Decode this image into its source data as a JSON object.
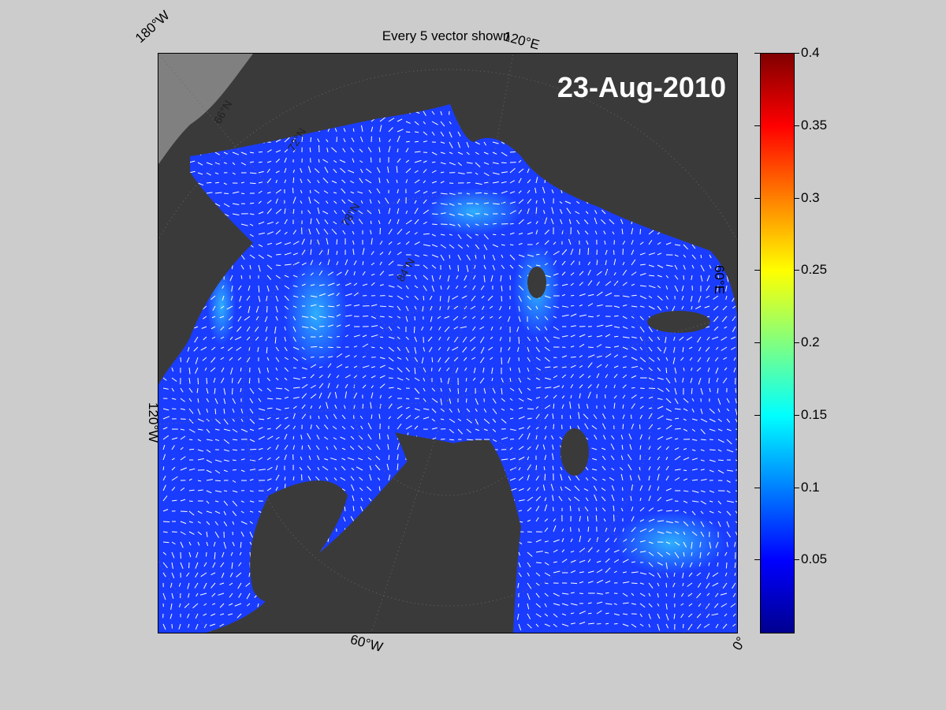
{
  "figure": {
    "title": "Every 5 vector shown",
    "date": "23-Aug-2010"
  },
  "map_labels": {
    "top_left": "180°W",
    "top_right": "120°E",
    "right": "60°E",
    "left": "120°W",
    "bottom": "60°W",
    "bottom_right": "0°",
    "lat1": "66°N",
    "lat2": "72°N",
    "lat3": "78°N",
    "lat4": "84°N"
  },
  "colorbar": {
    "min": 0,
    "max": 0.4,
    "ticks": [
      "0.4",
      "0.35",
      "0.3",
      "0.25",
      "0.2",
      "0.15",
      "0.1",
      "0.05"
    ],
    "tick_values": [
      0.4,
      0.35,
      0.3,
      0.25,
      0.2,
      0.15,
      0.1,
      0.05
    ],
    "colormap": "jet"
  },
  "colors": {
    "background": "#cccccc",
    "land": "#3a3a3a",
    "land_light": "#808080",
    "ocean_low": "#1030ff",
    "vectors": "#ffffff"
  }
}
